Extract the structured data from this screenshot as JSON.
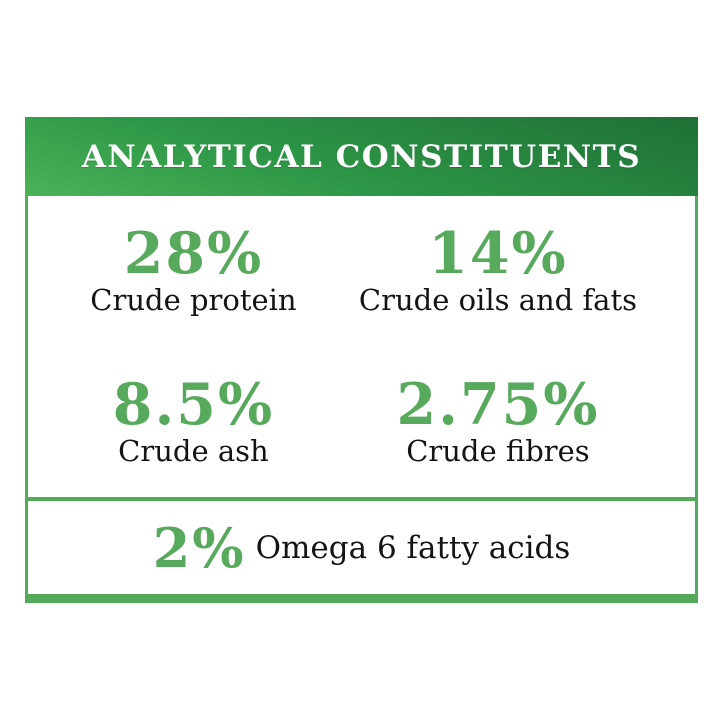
{
  "card": {
    "title": "ANALYTICAL CONSTITUENTS",
    "stats": [
      {
        "value": "28%",
        "label": "Crude protein"
      },
      {
        "value": "14%",
        "label": "Crude oils and fats"
      },
      {
        "value": "8.5%",
        "label": "Crude ash"
      },
      {
        "value": "2.75%",
        "label": "Crude fibres"
      }
    ],
    "footer": {
      "value": "2%",
      "label": "Omega 6 fatty acids"
    }
  },
  "colors": {
    "accent_green": "#57a95c",
    "border_green": "#56a95b",
    "header_dark": "#1f6f36",
    "header_mid": "#2d9847",
    "header_light": "#4cb258",
    "text_black": "#141414",
    "header_text": "#ffffff",
    "background": "#ffffff"
  }
}
